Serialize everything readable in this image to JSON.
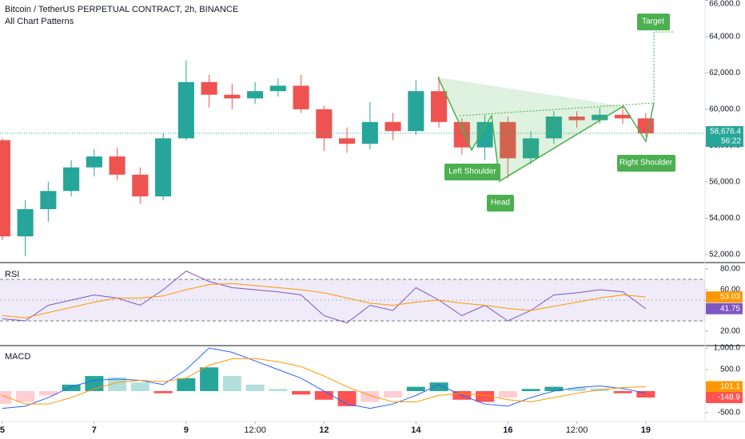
{
  "chart_data": [
    {
      "type": "candlestick",
      "title": "Bitcoin / TetherUS PERPETUAL CONTRACT, 2h, BINANCE",
      "subtitle": "All Chart Patterns",
      "x": [
        5,
        5.5,
        6,
        6.5,
        7,
        7.5,
        8,
        8.5,
        9,
        9.5,
        10,
        10.5,
        11,
        11.5,
        12,
        12.5,
        13,
        13.5,
        14,
        14.5,
        15,
        15.5,
        16,
        16.5,
        17,
        17.5,
        18,
        18.5,
        19
      ],
      "open": [
        58300,
        53000,
        54500,
        55500,
        56800,
        57400,
        56400,
        55200,
        58400,
        61500,
        60800,
        60600,
        61000,
        61300,
        60000,
        58400,
        58100,
        59300,
        58800,
        61000,
        59300,
        57900,
        59300,
        57300,
        58400,
        59600,
        59400,
        59700,
        59500
      ],
      "high": [
        58400,
        55000,
        56000,
        57200,
        57800,
        57900,
        56800,
        58700,
        62700,
        61900,
        61400,
        61500,
        61700,
        61900,
        60200,
        59000,
        60400,
        59800,
        61600,
        61800,
        59500,
        59700,
        59600,
        58800,
        59900,
        59900,
        60100,
        60200,
        59800
      ],
      "low": [
        52800,
        51900,
        53800,
        55200,
        56300,
        56100,
        54800,
        55000,
        58300,
        60100,
        60000,
        60300,
        60700,
        59800,
        57700,
        57600,
        57800,
        58300,
        58600,
        59000,
        57500,
        57200,
        56200,
        57000,
        58100,
        59000,
        59200,
        59200,
        58500
      ],
      "close": [
        53000,
        54500,
        55500,
        56800,
        57400,
        56400,
        55200,
        58400,
        61500,
        60800,
        60600,
        61000,
        61300,
        60000,
        58400,
        58100,
        59300,
        58800,
        61000,
        59300,
        57900,
        59300,
        57300,
        58400,
        59600,
        59400,
        59700,
        59500,
        58676.4
      ],
      "up_color": "#26a69a",
      "down_color": "#ef5350",
      "xlim": [
        4.95,
        20.29
      ],
      "ylim": [
        51600,
        66020
      ],
      "yticks": [
        {
          "value": 52000,
          "label": "52,000.0"
        },
        {
          "value": 54000,
          "label": "54,000.0"
        },
        {
          "value": 56000,
          "label": "56,000.0"
        },
        {
          "value": 58000,
          "label": "58,000.0"
        },
        {
          "value": 60000,
          "label": "60,000.0"
        },
        {
          "value": 62000,
          "label": "62,000.0"
        },
        {
          "value": 64000,
          "label": "64,000.0"
        },
        {
          "value": 66000,
          "label": "66,000.0"
        }
      ],
      "last_price": {
        "value": 58676.4,
        "label": "58,676.4"
      },
      "countdown": "56:22",
      "annotations": [
        "Target",
        "Left Shoulder",
        "Head",
        "Right Shoulder"
      ]
    },
    {
      "type": "line",
      "title": "RSI",
      "x": [
        5,
        5.5,
        6,
        6.5,
        7,
        7.5,
        8,
        8.5,
        9,
        9.5,
        10,
        10.5,
        11,
        11.5,
        12,
        12.5,
        13,
        13.5,
        14,
        14.5,
        15,
        15.5,
        16,
        16.5,
        17,
        17.5,
        18,
        18.5,
        19
      ],
      "series": [
        {
          "color": "#7e57c2",
          "values": [
            32,
            30,
            45,
            50,
            55,
            52,
            45,
            60,
            78,
            68,
            62,
            60,
            58,
            55,
            35,
            28,
            45,
            40,
            62,
            50,
            35,
            45,
            30,
            40,
            55,
            57,
            60,
            58,
            41.75
          ]
        },
        {
          "color": "#ff9800",
          "values": [
            35,
            33,
            38,
            43,
            48,
            52,
            52,
            54,
            60,
            65,
            66,
            64,
            62,
            60,
            57,
            52,
            47,
            45,
            48,
            50,
            47,
            45,
            42,
            40,
            44,
            48,
            52,
            55,
            53.03
          ]
        }
      ],
      "band": [
        30,
        70
      ],
      "midline": 50,
      "band_color": "#7e57c2",
      "xlim": [
        4.95,
        20.29
      ],
      "ylim": [
        6.9,
        85.4
      ],
      "yticks": [
        {
          "value": 20,
          "label": "20.00"
        },
        {
          "value": 60,
          "label": "60.00"
        },
        {
          "value": 80,
          "label": "80.00"
        }
      ]
    },
    {
      "type": "macd",
      "title": "MACD",
      "x": [
        5,
        5.5,
        6,
        6.5,
        7,
        7.5,
        8,
        8.5,
        9,
        9.5,
        10,
        10.5,
        11,
        11.5,
        12,
        12.5,
        13,
        13.5,
        14,
        14.5,
        15,
        15.5,
        16,
        16.5,
        17,
        17.5,
        18,
        18.5,
        19
      ],
      "histogram": [
        -300,
        -250,
        -100,
        150,
        350,
        320,
        200,
        -50,
        300,
        550,
        350,
        150,
        50,
        -80,
        -200,
        -350,
        -250,
        -150,
        100,
        200,
        -200,
        -250,
        -150,
        50,
        100,
        80,
        60,
        -50,
        -148.9
      ],
      "histogram_colors": [
        "#26a69a",
        "#b2dfdb",
        "#ffcdd2",
        "#ff5252"
      ],
      "series": [
        {
          "color": "#2962ff",
          "values": [
            -400,
            -350,
            -150,
            100,
            250,
            280,
            250,
            150,
            500,
            1000,
            900,
            700,
            500,
            300,
            0,
            -300,
            -400,
            -300,
            -100,
            150,
            -100,
            -300,
            -350,
            -150,
            0,
            80,
            120,
            60,
            -47.8
          ]
        },
        {
          "color": "#ff9800",
          "values": [
            -100,
            -300,
            -300,
            -150,
            50,
            200,
            250,
            220,
            300,
            600,
            750,
            760,
            680,
            570,
            350,
            100,
            -100,
            -250,
            -250,
            -100,
            -50,
            -100,
            -200,
            -250,
            -150,
            -50,
            30,
            80,
            101.1
          ]
        }
      ],
      "xlim": [
        4.95,
        20.29
      ],
      "ylim": [
        -704,
        1037
      ],
      "yticks": [
        {
          "value": -500,
          "label": "-500.0"
        },
        {
          "value": 500,
          "label": "500.0"
        },
        {
          "value": 1000,
          "label": "1,000.0"
        }
      ],
      "xticks": [
        {
          "value": 5,
          "label": "5"
        },
        {
          "value": 7,
          "label": "7"
        },
        {
          "value": 9,
          "label": "9"
        },
        {
          "value": 10.5,
          "label": "12:00"
        },
        {
          "value": 12,
          "label": "12"
        },
        {
          "value": 14,
          "label": "14"
        },
        {
          "value": 16,
          "label": "16"
        },
        {
          "value": 17.5,
          "label": "12:00"
        },
        {
          "value": 19,
          "label": "19"
        }
      ]
    }
  ]
}
